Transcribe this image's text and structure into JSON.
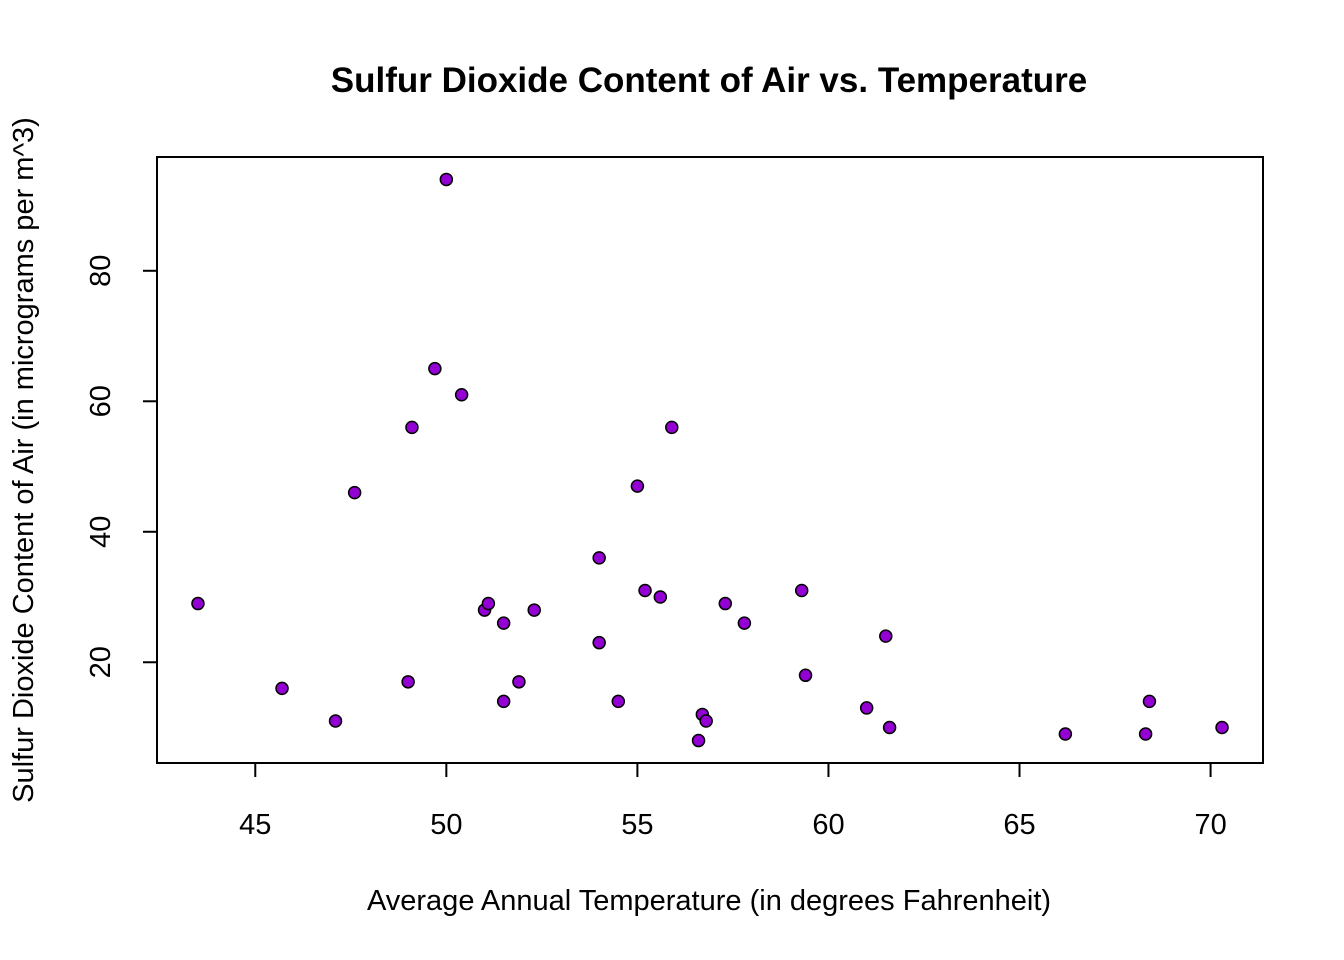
{
  "chart_data": {
    "type": "scatter",
    "title": "Sulfur Dioxide Content of Air vs. Temperature",
    "xlabel": "Average Annual Temperature (in degrees Fahrenheit)",
    "ylabel": "Sulfur Dioxide Content of Air (in micrograms per m^3)",
    "xlim": [
      43.5,
      70.3
    ],
    "ylim": [
      8,
      94
    ],
    "x_ticks": [
      45,
      50,
      55,
      60,
      65,
      70
    ],
    "y_ticks": [
      20,
      40,
      60,
      80
    ],
    "grid": false,
    "marker_color": "#9400D3",
    "points": [
      {
        "x": 43.5,
        "y": 29
      },
      {
        "x": 45.7,
        "y": 16
      },
      {
        "x": 47.1,
        "y": 11
      },
      {
        "x": 47.6,
        "y": 46
      },
      {
        "x": 49.0,
        "y": 17
      },
      {
        "x": 49.1,
        "y": 56
      },
      {
        "x": 49.7,
        "y": 65
      },
      {
        "x": 50.0,
        "y": 94
      },
      {
        "x": 50.4,
        "y": 61
      },
      {
        "x": 51.0,
        "y": 28
      },
      {
        "x": 51.1,
        "y": 29
      },
      {
        "x": 51.5,
        "y": 26
      },
      {
        "x": 51.5,
        "y": 14
      },
      {
        "x": 51.9,
        "y": 17
      },
      {
        "x": 52.3,
        "y": 28
      },
      {
        "x": 54.0,
        "y": 36
      },
      {
        "x": 54.0,
        "y": 23
      },
      {
        "x": 54.5,
        "y": 14
      },
      {
        "x": 55.0,
        "y": 47
      },
      {
        "x": 55.2,
        "y": 31
      },
      {
        "x": 55.6,
        "y": 30
      },
      {
        "x": 55.9,
        "y": 56
      },
      {
        "x": 56.6,
        "y": 8
      },
      {
        "x": 56.7,
        "y": 12
      },
      {
        "x": 56.8,
        "y": 11
      },
      {
        "x": 57.3,
        "y": 29
      },
      {
        "x": 57.8,
        "y": 26
      },
      {
        "x": 59.3,
        "y": 31
      },
      {
        "x": 59.4,
        "y": 18
      },
      {
        "x": 61.0,
        "y": 13
      },
      {
        "x": 61.5,
        "y": 24
      },
      {
        "x": 61.6,
        "y": 10
      },
      {
        "x": 66.2,
        "y": 9
      },
      {
        "x": 68.3,
        "y": 9
      },
      {
        "x": 68.4,
        "y": 14
      },
      {
        "x": 70.3,
        "y": 10
      }
    ]
  }
}
